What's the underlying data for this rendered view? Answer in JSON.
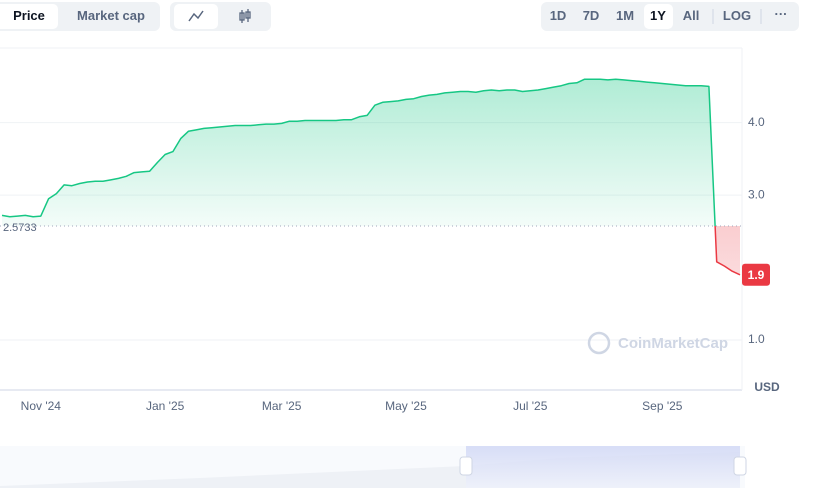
{
  "toolbar": {
    "tabs": [
      "Price",
      "Market cap"
    ],
    "ranges": [
      "1D",
      "7D",
      "1M",
      "1Y",
      "All"
    ],
    "log": "LOG",
    "more": "···"
  },
  "chart_data": {
    "type": "line",
    "categories": [
      null,
      null,
      null,
      null,
      null,
      "Nov '24",
      null,
      null,
      null,
      null,
      null,
      null,
      null,
      null,
      null,
      null,
      null,
      null,
      null,
      null,
      null,
      "Jan '25",
      null,
      null,
      null,
      null,
      null,
      null,
      null,
      null,
      null,
      null,
      null,
      null,
      null,
      null,
      "Mar '25",
      null,
      null,
      null,
      null,
      null,
      null,
      null,
      null,
      null,
      null,
      null,
      null,
      null,
      null,
      null,
      "May '25",
      null,
      null,
      null,
      null,
      null,
      null,
      null,
      null,
      null,
      null,
      null,
      null,
      null,
      null,
      null,
      "Jul '25",
      null,
      null,
      null,
      null,
      null,
      null,
      null,
      null,
      null,
      null,
      null,
      null,
      null,
      null,
      null,
      null,
      "Sep '25",
      null,
      null,
      null,
      null,
      null,
      null,
      null,
      null,
      null,
      null
    ],
    "series": [
      {
        "color": "#16c784",
        "down_color": "#ea3943",
        "values": [
          2.72,
          2.7,
          2.71,
          2.72,
          2.7,
          2.71,
          2.95,
          3.02,
          3.14,
          3.13,
          3.16,
          3.18,
          3.19,
          3.19,
          3.21,
          3.23,
          3.26,
          3.31,
          3.32,
          3.33,
          3.45,
          3.56,
          3.6,
          3.78,
          3.88,
          3.9,
          3.92,
          3.93,
          3.94,
          3.95,
          3.96,
          3.96,
          3.96,
          3.97,
          3.98,
          3.98,
          3.99,
          4.02,
          4.02,
          4.03,
          4.03,
          4.03,
          4.03,
          4.03,
          4.04,
          4.04,
          4.08,
          4.1,
          4.24,
          4.28,
          4.29,
          4.3,
          4.32,
          4.33,
          4.36,
          4.38,
          4.39,
          4.41,
          4.42,
          4.43,
          4.43,
          4.42,
          4.44,
          4.45,
          4.44,
          4.45,
          4.45,
          4.43,
          4.44,
          4.45,
          4.47,
          4.49,
          4.51,
          4.54,
          4.55,
          4.6,
          4.6,
          4.6,
          4.59,
          4.6,
          4.59,
          4.58,
          4.57,
          4.56,
          4.55,
          4.54,
          4.53,
          4.52,
          4.51,
          4.51,
          4.51,
          4.5,
          2.08,
          2.02,
          1.95,
          1.9
        ]
      }
    ],
    "reference_value": 2.5733,
    "ylim": [
      0.31,
      5.03
    ],
    "yticks": [
      {
        "value": 1,
        "label": "1.0"
      },
      {
        "value": 3,
        "label": "3.0"
      },
      {
        "value": 4,
        "label": "4.0"
      }
    ],
    "grid": true,
    "unit": "USD",
    "watermark": "CoinMarketCap"
  }
}
